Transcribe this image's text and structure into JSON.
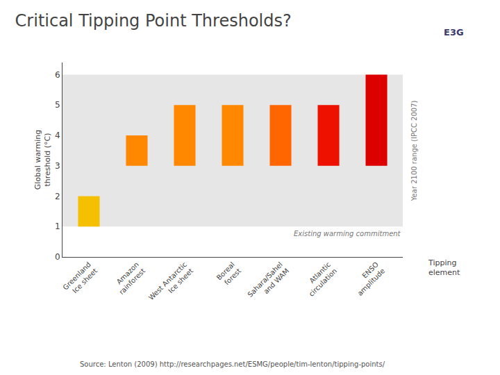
{
  "chart_data": {
    "type": "bar",
    "title": "Critical Tipping Point Thresholds?",
    "categories": [
      "Greenland\nIce sheet",
      "Amazon\nrainforest",
      "West Antarctic\nIce sheet",
      "Boreal\nforest",
      "Sahara/Sahel\nand WAM",
      "Atlantic\ncirculation",
      "ENSO\namplitude"
    ],
    "values": [
      2,
      4,
      5,
      5,
      5,
      5,
      6
    ],
    "bottoms": [
      1,
      3,
      3,
      3,
      3,
      3,
      3
    ],
    "colors": [
      "#F5C000",
      "#FF8800",
      "#FF8800",
      "#FF8800",
      "#FF6600",
      "#EE1100",
      "#DD0000"
    ],
    "xlabel": "Tipping\nelement",
    "ylabel": "Global warming\nthreshold (°C)",
    "ylim": [
      0,
      6.4
    ],
    "yticks": [
      0,
      1,
      2,
      3,
      4,
      5,
      6
    ],
    "grid": false,
    "band": [
      1,
      6
    ],
    "annotations": [
      "Existing warming commitment",
      "Year 2100 range (IPCC 2007)",
      "E3G"
    ],
    "source": "Source: Lenton (2009) http://researchpages.net/ESMG/people/tim-lenton/tipping-points/"
  }
}
